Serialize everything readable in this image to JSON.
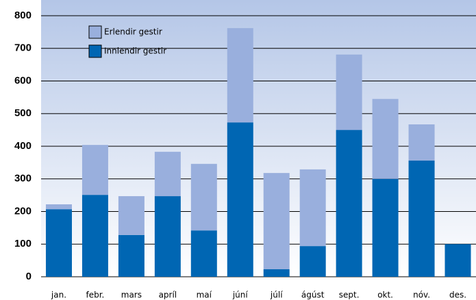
{
  "chart_data": {
    "type": "stacked_bar",
    "categories": [
      "jan.",
      "febr.",
      "mars",
      "apríl",
      "maí",
      "júní",
      "júlí",
      "ágúst",
      "sept.",
      "okt.",
      "nóv.",
      "des."
    ],
    "series": [
      {
        "name": "Innlendir gestir",
        "color": "#0066b3",
        "values": [
          207,
          251,
          128,
          247,
          142,
          473,
          23,
          94,
          450,
          300,
          356,
          100
        ]
      },
      {
        "name": "Erlendir gestir",
        "color": "#99afdd",
        "values": [
          15,
          153,
          119,
          136,
          204,
          289,
          295,
          235,
          231,
          245,
          111,
          0
        ]
      }
    ],
    "ylim": [
      0,
      800
    ],
    "yticks": [
      0,
      100,
      200,
      300,
      400,
      500,
      600,
      700,
      800
    ],
    "grid": true,
    "legend": "top-left"
  }
}
